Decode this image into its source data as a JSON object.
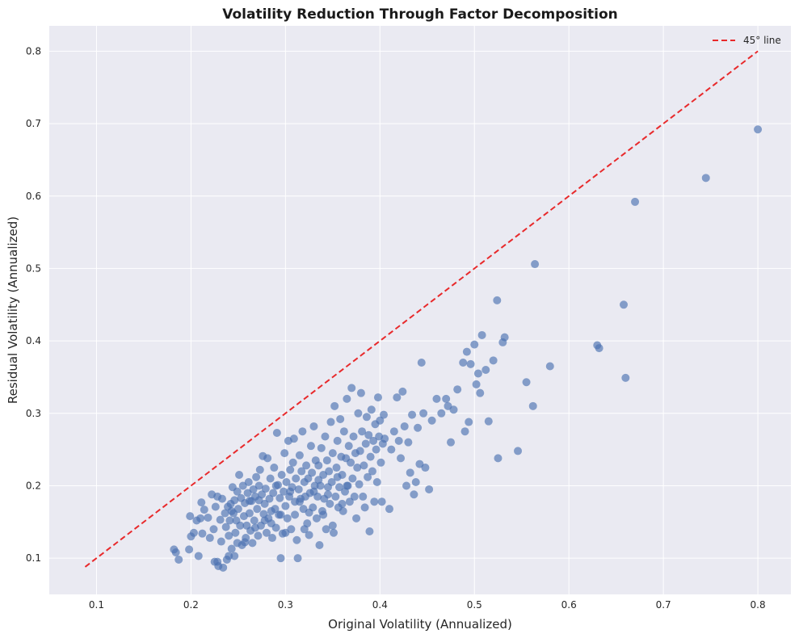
{
  "chart_data": {
    "type": "scatter",
    "title": "Volatility Reduction Through Factor Decomposition",
    "xlabel": "Original Volatility (Annualized)",
    "ylabel": "Residual Volatility (Annualized)",
    "xlim": [
      0.05,
      0.835
    ],
    "ylim": [
      0.05,
      0.835
    ],
    "xticks": [
      "0.1",
      "0.2",
      "0.3",
      "0.4",
      "0.5",
      "0.6",
      "0.7",
      "0.8"
    ],
    "yticks": [
      "0.1",
      "0.2",
      "0.3",
      "0.4",
      "0.5",
      "0.6",
      "0.7",
      "0.8"
    ],
    "grid": true,
    "legend_position": "top-right",
    "colors": {
      "points": "#4c72b0",
      "reference_line": "#e8292b",
      "plot_background": "#eaeaf2",
      "grid": "#ffffff"
    },
    "reference_line": {
      "label": "45° line",
      "style": "dashed",
      "from": [
        0.088,
        0.088
      ],
      "to": [
        0.8,
        0.8
      ]
    },
    "series": [
      {
        "marker": "circle",
        "points": [
          [
            0.182,
            0.112
          ],
          [
            0.184,
            0.108
          ],
          [
            0.187,
            0.098
          ],
          [
            0.198,
            0.112
          ],
          [
            0.2,
            0.13
          ],
          [
            0.199,
            0.158
          ],
          [
            0.203,
            0.135
          ],
          [
            0.206,
            0.152
          ],
          [
            0.208,
            0.103
          ],
          [
            0.21,
            0.155
          ],
          [
            0.211,
            0.177
          ],
          [
            0.212,
            0.134
          ],
          [
            0.214,
            0.167
          ],
          [
            0.218,
            0.156
          ],
          [
            0.22,
            0.128
          ],
          [
            0.222,
            0.188
          ],
          [
            0.224,
            0.14
          ],
          [
            0.226,
            0.171
          ],
          [
            0.228,
            0.095
          ],
          [
            0.228,
            0.185
          ],
          [
            0.229,
            0.089
          ],
          [
            0.231,
            0.153
          ],
          [
            0.232,
            0.123
          ],
          [
            0.233,
            0.182
          ],
          [
            0.234,
            0.087
          ],
          [
            0.236,
            0.162
          ],
          [
            0.237,
            0.143
          ],
          [
            0.238,
            0.098
          ],
          [
            0.239,
            0.171
          ],
          [
            0.24,
            0.103
          ],
          [
            0.24,
            0.131
          ],
          [
            0.241,
            0.152
          ],
          [
            0.242,
            0.175
          ],
          [
            0.243,
            0.113
          ],
          [
            0.244,
            0.198
          ],
          [
            0.245,
            0.162
          ],
          [
            0.246,
            0.103
          ],
          [
            0.246,
            0.18
          ],
          [
            0.247,
            0.135
          ],
          [
            0.248,
            0.152
          ],
          [
            0.249,
            0.121
          ],
          [
            0.249,
            0.192
          ],
          [
            0.25,
            0.168
          ],
          [
            0.251,
            0.215
          ],
          [
            0.252,
            0.145
          ],
          [
            0.253,
            0.183
          ],
          [
            0.254,
            0.118
          ],
          [
            0.255,
            0.2
          ],
          [
            0.256,
            0.158
          ],
          [
            0.257,
            0.176
          ],
          [
            0.258,
            0.128
          ],
          [
            0.259,
            0.145
          ],
          [
            0.26,
            0.19
          ],
          [
            0.261,
            0.205
          ],
          [
            0.262,
            0.162
          ],
          [
            0.263,
            0.138
          ],
          [
            0.264,
            0.179
          ],
          [
            0.265,
            0.121
          ],
          [
            0.266,
            0.195
          ],
          [
            0.267,
            0.152
          ],
          [
            0.268,
            0.185
          ],
          [
            0.269,
            0.212
          ],
          [
            0.27,
            0.168
          ],
          [
            0.271,
            0.131
          ],
          [
            0.272,
            0.2
          ],
          [
            0.273,
            0.222
          ],
          [
            0.274,
            0.145
          ],
          [
            0.275,
            0.188
          ],
          [
            0.276,
            0.241
          ],
          [
            0.277,
            0.161
          ],
          [
            0.278,
            0.175
          ],
          [
            0.279,
            0.196
          ],
          [
            0.28,
            0.135
          ],
          [
            0.281,
            0.238
          ],
          [
            0.282,
            0.155
          ],
          [
            0.283,
            0.182
          ],
          [
            0.284,
            0.21
          ],
          [
            0.285,
            0.148
          ],
          [
            0.286,
            0.128
          ],
          [
            0.287,
            0.19
          ],
          [
            0.288,
            0.225
          ],
          [
            0.289,
            0.168
          ],
          [
            0.29,
            0.142
          ],
          [
            0.291,
            0.273
          ],
          [
            0.292,
            0.201
          ],
          [
            0.293,
            0.16
          ],
          [
            0.294,
            0.183
          ],
          [
            0.295,
            0.1
          ],
          [
            0.296,
            0.215
          ],
          [
            0.297,
            0.134
          ],
          [
            0.298,
            0.192
          ],
          [
            0.299,
            0.245
          ],
          [
            0.3,
            0.172
          ],
          [
            0.301,
            0.205
          ],
          [
            0.302,
            0.155
          ],
          [
            0.303,
            0.262
          ],
          [
            0.304,
            0.185
          ],
          [
            0.305,
            0.222
          ],
          [
            0.306,
            0.14
          ],
          [
            0.307,
            0.198
          ],
          [
            0.308,
            0.232
          ],
          [
            0.309,
            0.265
          ],
          [
            0.31,
            0.178
          ],
          [
            0.311,
            0.21
          ],
          [
            0.312,
            0.125
          ],
          [
            0.313,
            0.1
          ],
          [
            0.314,
            0.195
          ],
          [
            0.315,
            0.242
          ],
          [
            0.316,
            0.182
          ],
          [
            0.317,
            0.22
          ],
          [
            0.318,
            0.275
          ],
          [
            0.319,
            0.168
          ],
          [
            0.32,
            0.205
          ],
          [
            0.321,
            0.185
          ],
          [
            0.322,
            0.228
          ],
          [
            0.323,
            0.148
          ],
          [
            0.324,
            0.21
          ],
          [
            0.325,
            0.132
          ],
          [
            0.326,
            0.19
          ],
          [
            0.327,
            0.255
          ],
          [
            0.328,
            0.218
          ],
          [
            0.329,
            0.17
          ],
          [
            0.33,
            0.282
          ],
          [
            0.331,
            0.2
          ],
          [
            0.332,
            0.235
          ],
          [
            0.333,
            0.155
          ],
          [
            0.334,
            0.185
          ],
          [
            0.335,
            0.228
          ],
          [
            0.336,
            0.118
          ],
          [
            0.337,
            0.2
          ],
          [
            0.338,
            0.252
          ],
          [
            0.339,
            0.165
          ],
          [
            0.34,
            0.215
          ],
          [
            0.341,
            0.182
          ],
          [
            0.342,
            0.268
          ],
          [
            0.343,
            0.14
          ],
          [
            0.344,
            0.235
          ],
          [
            0.345,
            0.198
          ],
          [
            0.346,
            0.22
          ],
          [
            0.347,
            0.175
          ],
          [
            0.348,
            0.288
          ],
          [
            0.349,
            0.205
          ],
          [
            0.35,
            0.245
          ],
          [
            0.351,
            0.135
          ],
          [
            0.352,
            0.31
          ],
          [
            0.353,
            0.185
          ],
          [
            0.354,
            0.225
          ],
          [
            0.355,
            0.262
          ],
          [
            0.356,
            0.17
          ],
          [
            0.357,
            0.198
          ],
          [
            0.358,
            0.292
          ],
          [
            0.359,
            0.24
          ],
          [
            0.36,
            0.215
          ],
          [
            0.361,
            0.165
          ],
          [
            0.362,
            0.275
          ],
          [
            0.363,
            0.192
          ],
          [
            0.364,
            0.238
          ],
          [
            0.365,
            0.32
          ],
          [
            0.366,
            0.2
          ],
          [
            0.367,
            0.255
          ],
          [
            0.368,
            0.178
          ],
          [
            0.369,
            0.232
          ],
          [
            0.37,
            0.335
          ],
          [
            0.371,
            0.21
          ],
          [
            0.372,
            0.268
          ],
          [
            0.373,
            0.185
          ],
          [
            0.374,
            0.245
          ],
          [
            0.375,
            0.155
          ],
          [
            0.376,
            0.225
          ],
          [
            0.377,
            0.3
          ],
          [
            0.378,
            0.202
          ],
          [
            0.379,
            0.248
          ],
          [
            0.38,
            0.328
          ],
          [
            0.381,
            0.275
          ],
          [
            0.382,
            0.185
          ],
          [
            0.383,
            0.228
          ],
          [
            0.384,
            0.17
          ],
          [
            0.385,
            0.258
          ],
          [
            0.386,
            0.295
          ],
          [
            0.387,
            0.212
          ],
          [
            0.388,
            0.27
          ],
          [
            0.389,
            0.137
          ],
          [
            0.39,
            0.24
          ],
          [
            0.391,
            0.305
          ],
          [
            0.392,
            0.22
          ],
          [
            0.393,
            0.262
          ],
          [
            0.394,
            0.178
          ],
          [
            0.395,
            0.285
          ],
          [
            0.396,
            0.25
          ],
          [
            0.397,
            0.205
          ],
          [
            0.398,
            0.322
          ],
          [
            0.399,
            0.268
          ],
          [
            0.4,
            0.29
          ],
          [
            0.401,
            0.232
          ],
          [
            0.402,
            0.178
          ],
          [
            0.403,
            0.258
          ],
          [
            0.404,
            0.298
          ],
          [
            0.405,
            0.265
          ],
          [
            0.41,
            0.168
          ],
          [
            0.412,
            0.25
          ],
          [
            0.415,
            0.275
          ],
          [
            0.418,
            0.322
          ],
          [
            0.42,
            0.262
          ],
          [
            0.422,
            0.238
          ],
          [
            0.424,
            0.33
          ],
          [
            0.426,
            0.282
          ],
          [
            0.428,
            0.2
          ],
          [
            0.43,
            0.26
          ],
          [
            0.432,
            0.218
          ],
          [
            0.434,
            0.298
          ],
          [
            0.436,
            0.188
          ],
          [
            0.438,
            0.205
          ],
          [
            0.44,
            0.28
          ],
          [
            0.442,
            0.23
          ],
          [
            0.444,
            0.37
          ],
          [
            0.446,
            0.3
          ],
          [
            0.448,
            0.225
          ],
          [
            0.452,
            0.195
          ],
          [
            0.455,
            0.29
          ],
          [
            0.46,
            0.32
          ],
          [
            0.465,
            0.3
          ],
          [
            0.47,
            0.32
          ],
          [
            0.472,
            0.31
          ],
          [
            0.475,
            0.26
          ],
          [
            0.478,
            0.305
          ],
          [
            0.482,
            0.333
          ],
          [
            0.488,
            0.37
          ],
          [
            0.49,
            0.275
          ],
          [
            0.492,
            0.385
          ],
          [
            0.494,
            0.288
          ],
          [
            0.496,
            0.368
          ],
          [
            0.5,
            0.395
          ],
          [
            0.502,
            0.34
          ],
          [
            0.504,
            0.355
          ],
          [
            0.506,
            0.328
          ],
          [
            0.508,
            0.408
          ],
          [
            0.512,
            0.36
          ],
          [
            0.515,
            0.289
          ],
          [
            0.52,
            0.373
          ],
          [
            0.524,
            0.456
          ],
          [
            0.525,
            0.238
          ],
          [
            0.53,
            0.398
          ],
          [
            0.532,
            0.405
          ],
          [
            0.546,
            0.248
          ],
          [
            0.555,
            0.343
          ],
          [
            0.562,
            0.31
          ],
          [
            0.564,
            0.506
          ],
          [
            0.58,
            0.365
          ],
          [
            0.63,
            0.394
          ],
          [
            0.632,
            0.39
          ],
          [
            0.658,
            0.45
          ],
          [
            0.66,
            0.349
          ],
          [
            0.67,
            0.592
          ],
          [
            0.745,
            0.625
          ],
          [
            0.8,
            0.692
          ],
          [
            0.225,
            0.095
          ],
          [
            0.243,
            0.165
          ],
          [
            0.257,
            0.122
          ],
          [
            0.262,
            0.179
          ],
          [
            0.268,
            0.142
          ],
          [
            0.272,
            0.18
          ],
          [
            0.278,
            0.152
          ],
          [
            0.285,
            0.165
          ],
          [
            0.29,
            0.2
          ],
          [
            0.295,
            0.16
          ],
          [
            0.3,
            0.135
          ],
          [
            0.305,
            0.192
          ],
          [
            0.31,
            0.16
          ],
          [
            0.315,
            0.178
          ],
          [
            0.32,
            0.14
          ],
          [
            0.325,
            0.163
          ],
          [
            0.33,
            0.192
          ],
          [
            0.335,
            0.208
          ],
          [
            0.34,
            0.16
          ],
          [
            0.345,
            0.188
          ],
          [
            0.35,
            0.145
          ],
          [
            0.355,
            0.212
          ],
          [
            0.36,
            0.175
          ],
          [
            0.365,
            0.2
          ]
        ]
      }
    ]
  }
}
